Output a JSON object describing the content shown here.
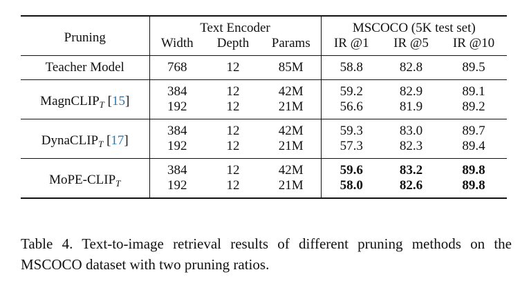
{
  "table": {
    "headers": {
      "pruning": "Pruning",
      "text_encoder_group": "Text Encoder",
      "mscoco_group": "MSCOCO (5K test set)",
      "columns": [
        "Width",
        "Depth",
        "Params",
        "IR @1",
        "IR @5",
        "IR @10"
      ]
    },
    "teacher": {
      "method": "Teacher Model",
      "width": "768",
      "depth": "12",
      "params": "85M",
      "ir1": "58.8",
      "ir5": "82.8",
      "ir10": "89.5"
    },
    "groups": [
      {
        "name": "MagnCLIP",
        "subscript": "T",
        "citation": "15",
        "rows": [
          {
            "width": "384",
            "depth": "12",
            "params": "42M",
            "ir1": "59.2",
            "ir5": "82.9",
            "ir10": "89.1"
          },
          {
            "width": "192",
            "depth": "12",
            "params": "21M",
            "ir1": "56.6",
            "ir5": "81.9",
            "ir10": "89.2"
          }
        ]
      },
      {
        "name": "DynaCLIP",
        "subscript": "T",
        "citation": "17",
        "rows": [
          {
            "width": "384",
            "depth": "12",
            "params": "42M",
            "ir1": "59.3",
            "ir5": "83.0",
            "ir10": "89.7"
          },
          {
            "width": "192",
            "depth": "12",
            "params": "21M",
            "ir1": "57.3",
            "ir5": "82.3",
            "ir10": "89.4"
          }
        ]
      },
      {
        "name": "MoPE-CLIP",
        "subscript": "T",
        "citation": "",
        "bold_results": true,
        "rows": [
          {
            "width": "384",
            "depth": "12",
            "params": "42M",
            "ir1": "59.6",
            "ir5": "83.2",
            "ir10": "89.8"
          },
          {
            "width": "192",
            "depth": "12",
            "params": "21M",
            "ir1": "58.0",
            "ir5": "82.6",
            "ir10": "89.8"
          }
        ]
      }
    ]
  },
  "caption": {
    "label": "Table 4.",
    "text": "Text-to-image retrieval results of different pruning methods on the MSCOCO dataset with two pruning ratios."
  }
}
